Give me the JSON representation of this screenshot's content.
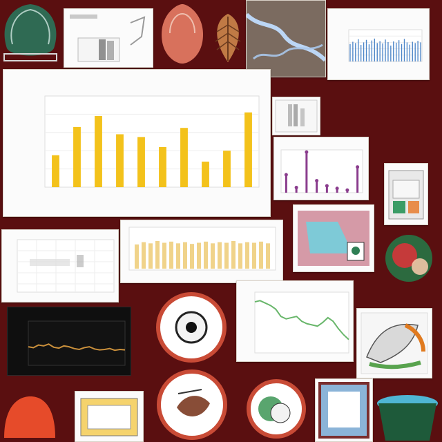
{
  "theme": {
    "background": "#5a0f10",
    "card": "#fbfbfb",
    "accent_yellow": "#f3c21b",
    "accent_blue": "#4d86c8",
    "accent_purple": "#8a3c8d",
    "line_green": "#68b66a",
    "line_orange": "#c98f3b"
  },
  "tiles": [
    {
      "name": "green-anatomy-illustration",
      "icon": "organ-icon"
    },
    {
      "name": "small-bar-chart-thumbnail",
      "icon": "chart-icon"
    },
    {
      "name": "coral-lung-illustration",
      "icon": "organ-icon"
    },
    {
      "name": "brown-seed-illustration",
      "icon": "leaf-icon"
    },
    {
      "name": "blue-river-map",
      "icon": "map-icon"
    },
    {
      "name": "blue-bar-chart-card",
      "icon": "chart-icon"
    },
    {
      "name": "yellow-bar-chart-card",
      "icon": "chart-icon"
    },
    {
      "name": "purple-stem-chart-card",
      "icon": "chart-icon"
    },
    {
      "name": "dark-line-chart-card",
      "icon": "chart-icon"
    },
    {
      "name": "green-line-chart-card",
      "icon": "chart-icon"
    },
    {
      "name": "circular-figure-1",
      "icon": "circle-icon"
    },
    {
      "name": "circular-figure-2",
      "icon": "circle-icon"
    },
    {
      "name": "circular-figure-3",
      "icon": "circle-icon"
    },
    {
      "name": "teal-color-illustration",
      "icon": "illustration-icon"
    }
  ],
  "chart_data": [
    {
      "type": "bar",
      "title": "",
      "xlabel": "",
      "ylabel": "",
      "categories": [
        "",
        "",
        "",
        "",
        "",
        "",
        "",
        "",
        "",
        ""
      ],
      "values": [
        35,
        66,
        78,
        58,
        55,
        44,
        65,
        28,
        40,
        82
      ],
      "ylim": [
        0,
        100
      ],
      "grid": true
    },
    {
      "type": "bar",
      "title": "",
      "xlabel": "",
      "ylabel": "",
      "categories": [
        "",
        "",
        "",
        "",
        "",
        "",
        "",
        "",
        "",
        "",
        "",
        "",
        "",
        "",
        "",
        "",
        "",
        "",
        "",
        "",
        "",
        "",
        "",
        "",
        "",
        "",
        ""
      ],
      "values": [
        55,
        62,
        58,
        70,
        52,
        60,
        68,
        54,
        66,
        72,
        58,
        64,
        57,
        69,
        61,
        50,
        63,
        59,
        67,
        55,
        71,
        60,
        53,
        62,
        58,
        65,
        60
      ],
      "ylim": [
        0,
        100
      ],
      "grid": true
    },
    {
      "type": "bar",
      "title": "",
      "xlabel": "",
      "ylabel": "",
      "categories": [
        "",
        "",
        "",
        "",
        "",
        "",
        "",
        ""
      ],
      "values": [
        42,
        12,
        95,
        28,
        16,
        10,
        6,
        60
      ],
      "ylim": [
        0,
        100
      ],
      "grid": true
    },
    {
      "type": "line",
      "title": "",
      "xlabel": "",
      "ylabel": "",
      "x": [
        0,
        1,
        2,
        3,
        4,
        5,
        6,
        7,
        8,
        9,
        10,
        11,
        12,
        13,
        14,
        15,
        16,
        17,
        18,
        19
      ],
      "values": [
        42,
        40,
        46,
        44,
        48,
        41,
        39,
        44,
        42,
        38,
        36,
        40,
        42,
        37,
        35,
        36,
        38,
        34,
        36,
        35
      ],
      "ylim": [
        0,
        100
      ]
    },
    {
      "type": "line",
      "title": "",
      "xlabel": "",
      "ylabel": "",
      "x": [
        0,
        1,
        2,
        3,
        4,
        5,
        6,
        7,
        8,
        9,
        10,
        11,
        12,
        13,
        14,
        15,
        16,
        17,
        18
      ],
      "values": [
        84,
        86,
        82,
        78,
        72,
        60,
        56,
        58,
        60,
        52,
        48,
        46,
        44,
        50,
        58,
        52,
        40,
        30,
        22
      ],
      "ylim": [
        0,
        100
      ]
    }
  ]
}
